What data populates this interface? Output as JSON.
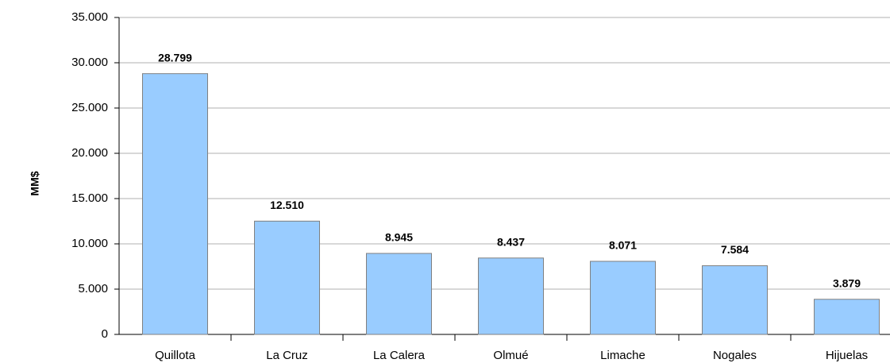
{
  "chart_data": {
    "type": "bar",
    "y_label": "MM$",
    "categories": [
      "Quillota",
      "La Cruz",
      "La Calera",
      "Olmué",
      "Limache",
      "Nogales",
      "Hijuelas"
    ],
    "values": [
      28799,
      12510,
      8945,
      8437,
      8071,
      7584,
      3879
    ],
    "value_labels": [
      "28.799",
      "12.510",
      "8.945",
      "8.437",
      "8.071",
      "7.584",
      "3.879"
    ],
    "color": "#99ccff",
    "ylim": [
      0,
      35000
    ],
    "yticks": [
      0,
      {
        "value": 5000,
        "label": "5.000"
      },
      {
        "value": 10000,
        "label": "10.000"
      },
      {
        "value": 15000,
        "label": "15.000"
      },
      {
        "value": 20000,
        "label": "20.000"
      },
      {
        "value": 25000,
        "label": "25.000"
      },
      {
        "value": 30000,
        "label": "30.000"
      },
      {
        "value": 35000,
        "label": "35.000"
      }
    ],
    "grid": true
  }
}
